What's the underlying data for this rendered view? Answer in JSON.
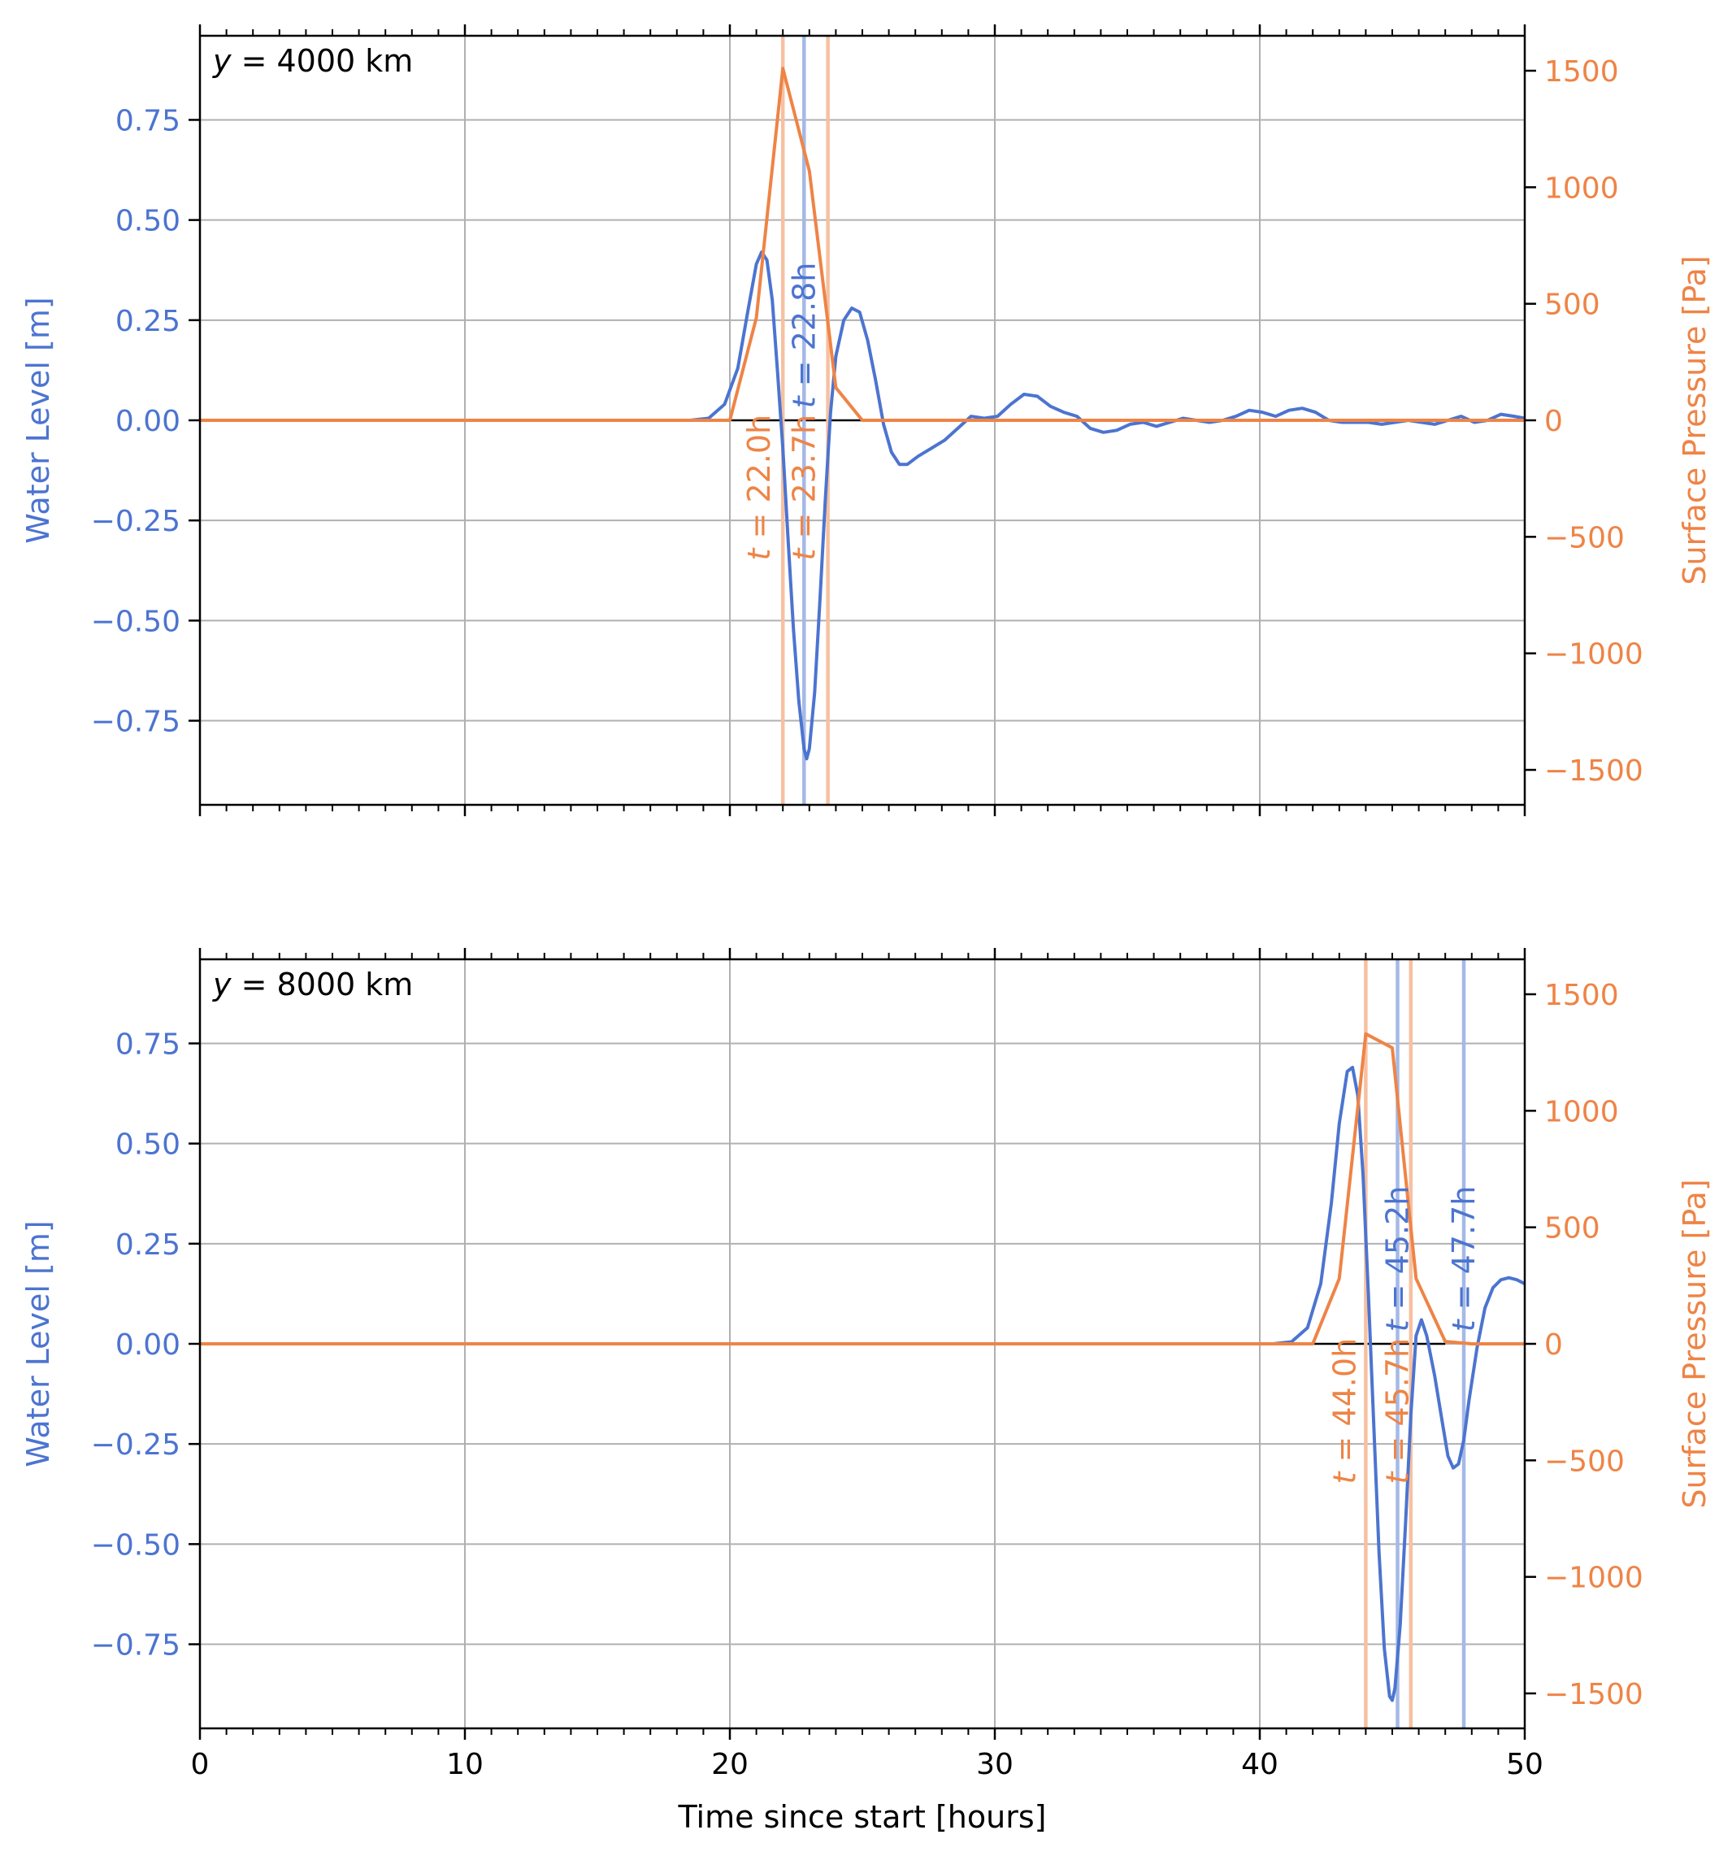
{
  "figure": {
    "xlabel": "Time since start [hours]"
  },
  "colors": {
    "water": "#4c74d0",
    "water_vline": "#a4b9e6",
    "pressure": "#ee8446",
    "pressure_vline": "#f6c1a1",
    "grid": "#b0b0b0",
    "axis": "#000000"
  },
  "chart_data": [
    {
      "type": "line",
      "annotation": "y = 4000 km",
      "annotation_prefix": "y",
      "annotation_suffix": " = 4000 km",
      "xlim": [
        0,
        50
      ],
      "xticks": [
        0,
        10,
        20,
        30,
        40,
        50
      ],
      "xtick_labels_visible": false,
      "ylabel_left": "Water Level [m]",
      "ylim_left": [
        -0.96,
        0.96
      ],
      "yticks_left": [
        -0.75,
        -0.5,
        -0.25,
        0.0,
        0.25,
        0.5,
        0.75
      ],
      "ytick_labels_left": [
        "−0.75",
        "−0.50",
        "−0.25",
        "0.00",
        "0.25",
        "0.50",
        "0.75"
      ],
      "ylabel_right": "Surface Pressure [Pa]",
      "ylim_right": [
        -1650,
        1650
      ],
      "yticks_right": [
        -1500,
        -1000,
        -500,
        0,
        500,
        1000,
        1500
      ],
      "ytick_labels_right": [
        "−1500",
        "−1000",
        "−500",
        "0",
        "500",
        "1000",
        "1500"
      ],
      "grid": true,
      "zero_line": {
        "x": [
          19,
          25
        ]
      },
      "series": [
        {
          "axis": "left",
          "color_key": "water",
          "points": [
            [
              0,
              0
            ],
            [
              18.5,
              0
            ],
            [
              19.2,
              0.005
            ],
            [
              19.8,
              0.04
            ],
            [
              20.3,
              0.13
            ],
            [
              20.7,
              0.28
            ],
            [
              21.0,
              0.39
            ],
            [
              21.2,
              0.42
            ],
            [
              21.4,
              0.4
            ],
            [
              21.6,
              0.3
            ],
            [
              21.8,
              0.12
            ],
            [
              22.0,
              -0.07
            ],
            [
              22.2,
              -0.3
            ],
            [
              22.4,
              -0.52
            ],
            [
              22.6,
              -0.7
            ],
            [
              22.8,
              -0.82
            ],
            [
              22.9,
              -0.845
            ],
            [
              23.0,
              -0.82
            ],
            [
              23.2,
              -0.68
            ],
            [
              23.4,
              -0.45
            ],
            [
              23.6,
              -0.2
            ],
            [
              23.8,
              0.02
            ],
            [
              24.0,
              0.16
            ],
            [
              24.3,
              0.25
            ],
            [
              24.6,
              0.28
            ],
            [
              24.9,
              0.27
            ],
            [
              25.2,
              0.2
            ],
            [
              25.5,
              0.1
            ],
            [
              25.8,
              -0.01
            ],
            [
              26.1,
              -0.08
            ],
            [
              26.4,
              -0.11
            ],
            [
              26.7,
              -0.11
            ],
            [
              27.1,
              -0.09
            ],
            [
              27.6,
              -0.07
            ],
            [
              28.1,
              -0.05
            ],
            [
              28.6,
              -0.02
            ],
            [
              29.1,
              0.01
            ],
            [
              29.6,
              0.005
            ],
            [
              30.1,
              0.01
            ],
            [
              30.6,
              0.04
            ],
            [
              31.1,
              0.065
            ],
            [
              31.6,
              0.06
            ],
            [
              32.1,
              0.035
            ],
            [
              32.6,
              0.02
            ],
            [
              33.1,
              0.01
            ],
            [
              33.6,
              -0.02
            ],
            [
              34.1,
              -0.03
            ],
            [
              34.6,
              -0.025
            ],
            [
              35.1,
              -0.01
            ],
            [
              35.6,
              -0.005
            ],
            [
              36.1,
              -0.015
            ],
            [
              36.6,
              -0.005
            ],
            [
              37.1,
              0.005
            ],
            [
              37.6,
              0.0
            ],
            [
              38.1,
              -0.005
            ],
            [
              38.6,
              0.0
            ],
            [
              39.1,
              0.01
            ],
            [
              39.6,
              0.025
            ],
            [
              40.1,
              0.02
            ],
            [
              40.6,
              0.01
            ],
            [
              41.1,
              0.025
            ],
            [
              41.6,
              0.03
            ],
            [
              42.1,
              0.02
            ],
            [
              42.6,
              0.0
            ],
            [
              43.1,
              -0.005
            ],
            [
              43.6,
              -0.005
            ],
            [
              44.1,
              -0.005
            ],
            [
              44.6,
              -0.01
            ],
            [
              45.1,
              -0.005
            ],
            [
              45.6,
              0.0
            ],
            [
              46.1,
              -0.005
            ],
            [
              46.6,
              -0.01
            ],
            [
              47.1,
              0.0
            ],
            [
              47.6,
              0.01
            ],
            [
              48.1,
              -0.005
            ],
            [
              48.6,
              0.0
            ],
            [
              49.1,
              0.015
            ],
            [
              49.6,
              0.01
            ],
            [
              50,
              0.005
            ]
          ]
        },
        {
          "axis": "right",
          "color_key": "pressure",
          "points": [
            [
              0,
              0
            ],
            [
              20.0,
              0
            ],
            [
              21.0,
              440
            ],
            [
              22.0,
              1510
            ],
            [
              23.0,
              1070
            ],
            [
              24.0,
              140
            ],
            [
              25.0,
              0
            ],
            [
              50,
              0
            ]
          ]
        }
      ],
      "vlines": [
        {
          "x": 22.0,
          "color_key": "pressure_vline",
          "label": "t = 22.0h",
          "label_prefix": "t",
          "label_suffix": " = 22.0h",
          "label_x": 21.5,
          "label_y": -0.35,
          "label_color_key": "pressure"
        },
        {
          "x": 22.8,
          "color_key": "water_vline",
          "label": "t = 22.8h",
          "label_prefix": "t",
          "label_suffix": " = 22.8h",
          "label_x": 23.2,
          "label_y": 0.03,
          "label_color_key": "water"
        },
        {
          "x": 23.7,
          "color_key": "pressure_vline",
          "label": "t = 23.7h",
          "label_prefix": "t",
          "label_suffix": " = 23.7h",
          "label_x": 23.2,
          "label_y": -0.35,
          "label_color_key": "pressure"
        }
      ]
    },
    {
      "type": "line",
      "annotation": "y = 8000 km",
      "annotation_prefix": "y",
      "annotation_suffix": " = 8000 km",
      "xlim": [
        0,
        50
      ],
      "xticks": [
        0,
        10,
        20,
        30,
        40,
        50
      ],
      "xtick_labels": [
        "0",
        "10",
        "20",
        "30",
        "40",
        "50"
      ],
      "xtick_labels_visible": true,
      "ylabel_left": "Water Level [m]",
      "ylim_left": [
        -0.96,
        0.96
      ],
      "yticks_left": [
        -0.75,
        -0.5,
        -0.25,
        0.0,
        0.25,
        0.5,
        0.75
      ],
      "ytick_labels_left": [
        "−0.75",
        "−0.50",
        "−0.25",
        "0.00",
        "0.25",
        "0.50",
        "0.75"
      ],
      "ylabel_right": "Surface Pressure [Pa]",
      "ylim_right": [
        -1650,
        1650
      ],
      "yticks_right": [
        -1500,
        -1000,
        -500,
        0,
        500,
        1000,
        1500
      ],
      "ytick_labels_right": [
        "−1500",
        "−1000",
        "−500",
        "0",
        "500",
        "1000",
        "1500"
      ],
      "grid": true,
      "zero_line": {
        "x": [
          41,
          47
        ]
      },
      "series": [
        {
          "axis": "left",
          "color_key": "water",
          "points": [
            [
              0,
              0
            ],
            [
              40.5,
              0
            ],
            [
              41.2,
              0.005
            ],
            [
              41.8,
              0.04
            ],
            [
              42.3,
              0.15
            ],
            [
              42.7,
              0.35
            ],
            [
              43.0,
              0.55
            ],
            [
              43.3,
              0.68
            ],
            [
              43.5,
              0.69
            ],
            [
              43.7,
              0.62
            ],
            [
              43.9,
              0.42
            ],
            [
              44.1,
              0.12
            ],
            [
              44.3,
              -0.2
            ],
            [
              44.5,
              -0.52
            ],
            [
              44.7,
              -0.76
            ],
            [
              44.9,
              -0.88
            ],
            [
              45.0,
              -0.89
            ],
            [
              45.1,
              -0.86
            ],
            [
              45.3,
              -0.7
            ],
            [
              45.5,
              -0.45
            ],
            [
              45.7,
              -0.18
            ],
            [
              45.9,
              0.02
            ],
            [
              46.1,
              0.06
            ],
            [
              46.3,
              0.02
            ],
            [
              46.6,
              -0.08
            ],
            [
              46.9,
              -0.2
            ],
            [
              47.1,
              -0.28
            ],
            [
              47.3,
              -0.31
            ],
            [
              47.5,
              -0.3
            ],
            [
              47.7,
              -0.24
            ],
            [
              47.9,
              -0.14
            ],
            [
              48.2,
              -0.01
            ],
            [
              48.5,
              0.09
            ],
            [
              48.8,
              0.14
            ],
            [
              49.1,
              0.16
            ],
            [
              49.4,
              0.165
            ],
            [
              49.7,
              0.16
            ],
            [
              50,
              0.15
            ]
          ]
        },
        {
          "axis": "right",
          "color_key": "pressure",
          "points": [
            [
              0,
              0
            ],
            [
              42.0,
              0
            ],
            [
              43.0,
              280
            ],
            [
              44.0,
              1330
            ],
            [
              45.0,
              1270
            ],
            [
              45.9,
              280
            ],
            [
              47.0,
              10
            ],
            [
              48.0,
              0
            ],
            [
              50,
              0
            ]
          ]
        }
      ],
      "vlines": [
        {
          "x": 44.0,
          "color_key": "pressure_vline",
          "label": "t = 44.0h",
          "label_prefix": "t",
          "label_suffix": " = 44.0h",
          "label_x": 43.6,
          "label_y": -0.35,
          "label_color_key": "pressure"
        },
        {
          "x": 45.2,
          "color_key": "water_vline",
          "label": "t = 45.2h",
          "label_prefix": "t",
          "label_suffix": " = 45.2h",
          "label_x": 45.6,
          "label_y": 0.03,
          "label_color_key": "water"
        },
        {
          "x": 45.7,
          "color_key": "pressure_vline",
          "label": "t = 45.7h",
          "label_prefix": "t",
          "label_suffix": " = 45.7h",
          "label_x": 45.6,
          "label_y": -0.35,
          "label_color_key": "pressure"
        },
        {
          "x": 47.7,
          "color_key": "water_vline",
          "label": "t = 47.7h",
          "label_prefix": "t",
          "label_suffix": " = 47.7h",
          "label_x": 48.1,
          "label_y": 0.03,
          "label_color_key": "water"
        }
      ]
    }
  ]
}
